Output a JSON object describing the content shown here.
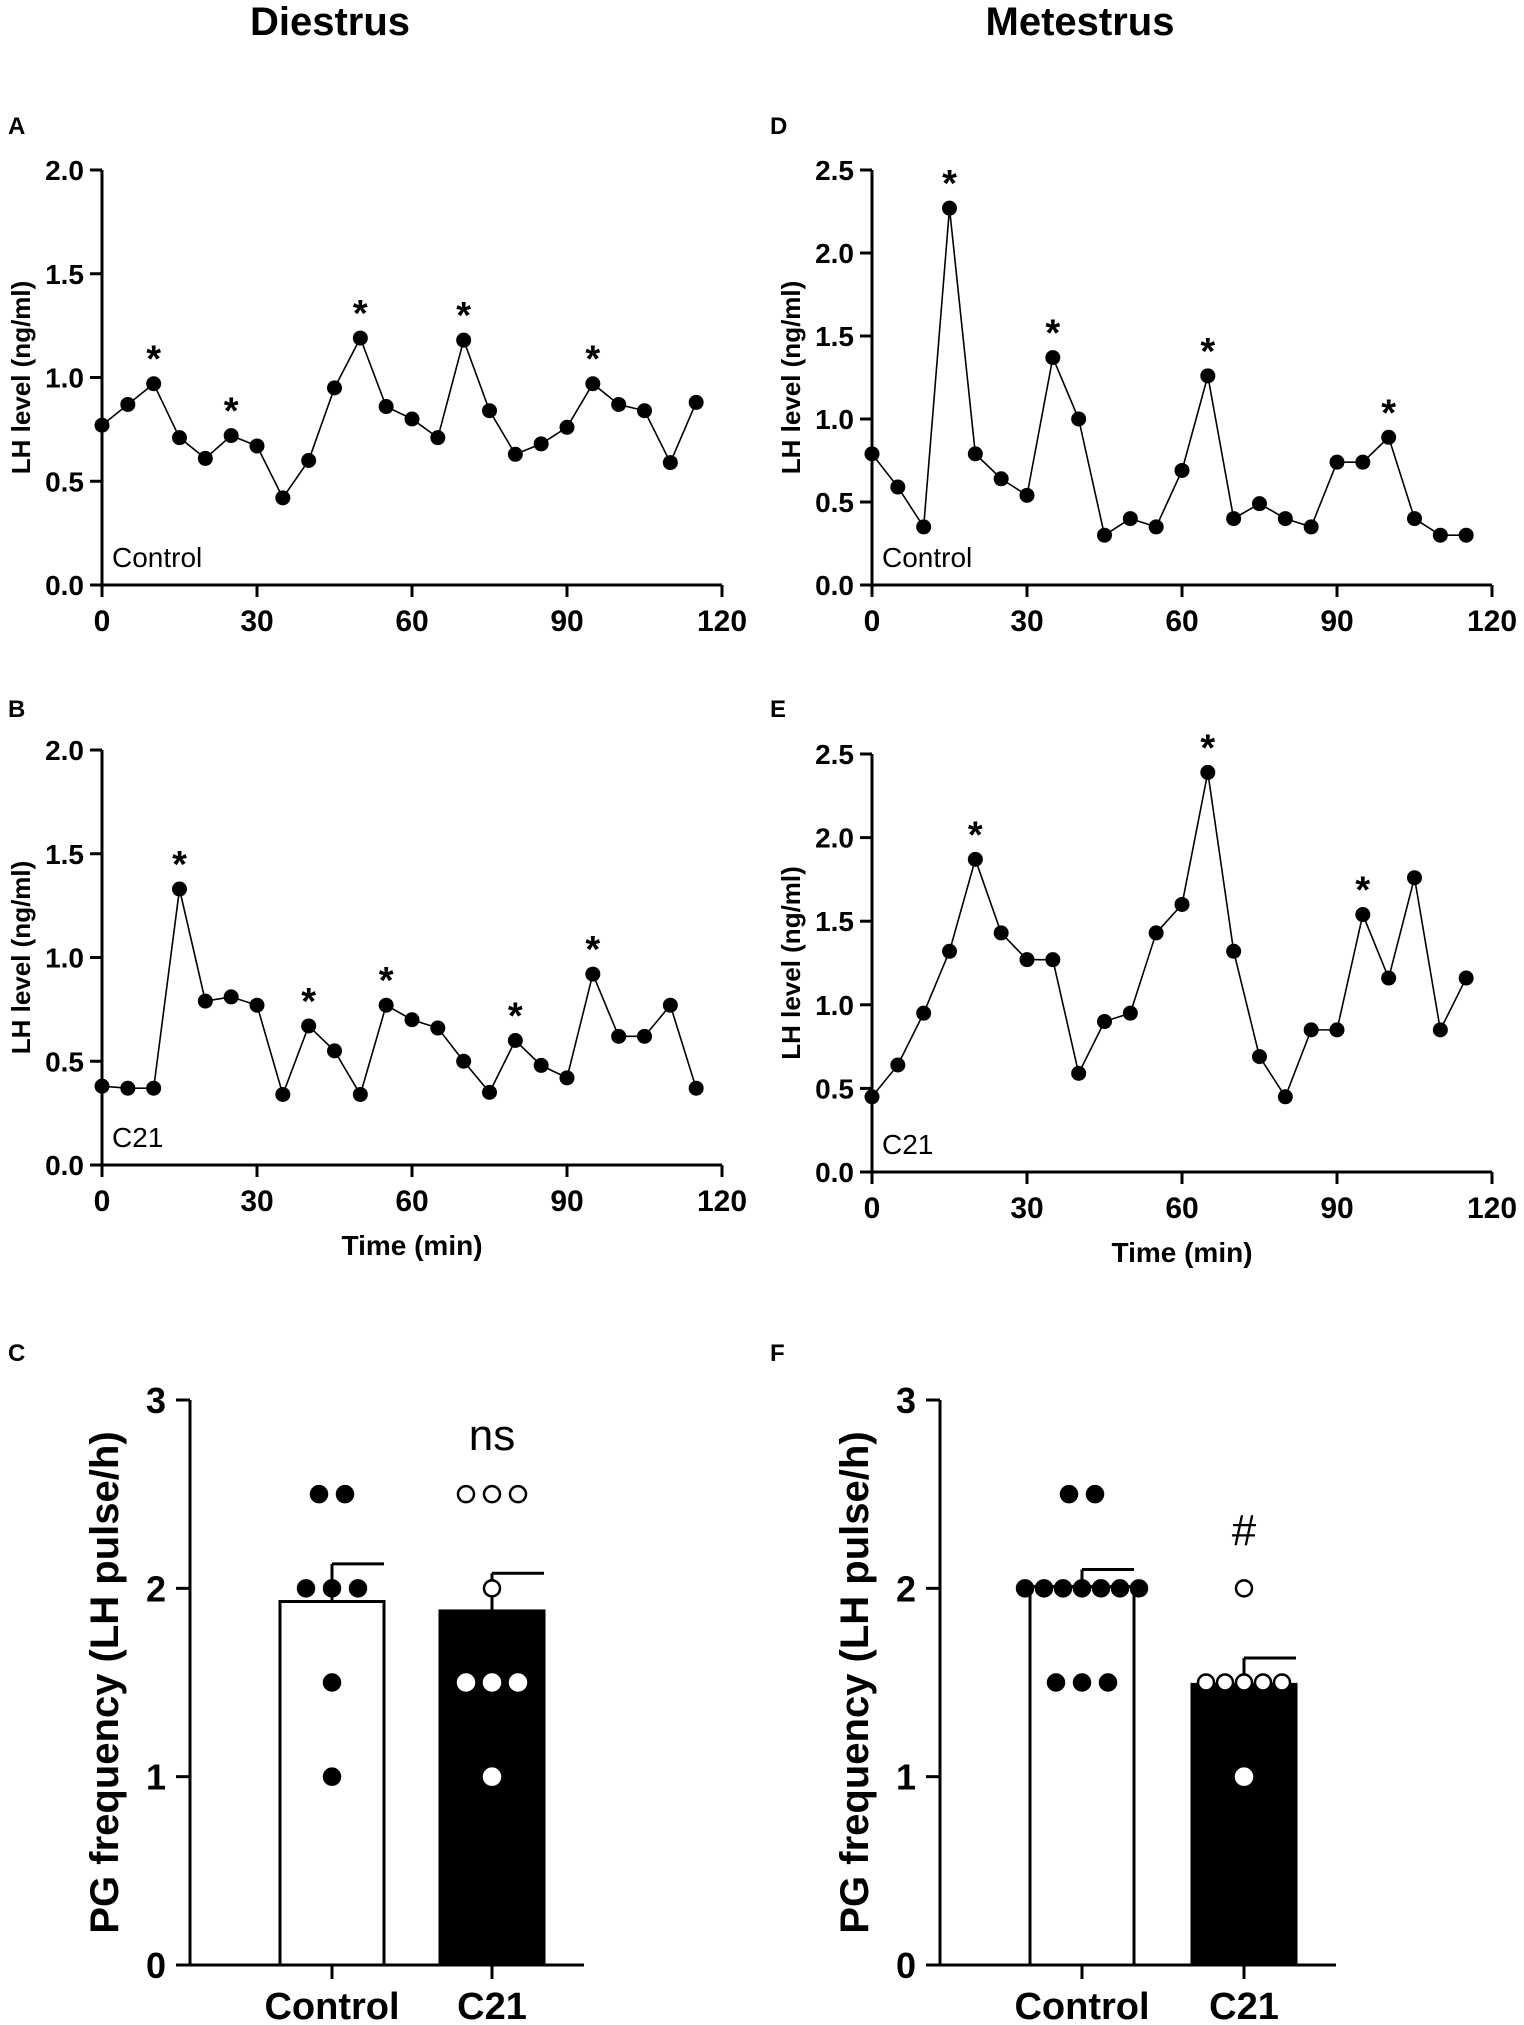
{
  "column_titles": {
    "left": "Diestrus",
    "right": "Metestrus"
  },
  "panel_letters": {
    "A": "A",
    "B": "B",
    "C": "C",
    "D": "D",
    "E": "E",
    "F": "F"
  },
  "chart_data": [
    {
      "id": "A",
      "type": "line",
      "group_label": "Control",
      "xlabel": "",
      "ylabel": "LH level (ng/ml)",
      "xlim": [
        0,
        120
      ],
      "ylim": [
        0,
        2.0
      ],
      "xticks": [
        0,
        30,
        60,
        90,
        120
      ],
      "xtick_labels": [
        "0",
        "30",
        "60",
        "90",
        "120"
      ],
      "yticks": [
        0,
        0.5,
        1.0,
        1.5,
        2.0
      ],
      "ytick_labels": [
        "0.0",
        "0.5",
        "1.0",
        "1.5",
        "2.0"
      ],
      "x": [
        0,
        5,
        10,
        15,
        20,
        25,
        30,
        35,
        40,
        45,
        50,
        55,
        60,
        65,
        70,
        75,
        80,
        85,
        90,
        95,
        100,
        105,
        110,
        115
      ],
      "y": [
        0.77,
        0.87,
        0.97,
        0.71,
        0.61,
        0.72,
        0.67,
        0.42,
        0.6,
        0.95,
        1.19,
        0.86,
        0.8,
        0.71,
        1.18,
        0.84,
        0.63,
        0.68,
        0.76,
        0.97,
        0.87,
        0.84,
        0.59,
        0.88
      ],
      "peaks": [
        10,
        25,
        50,
        70,
        95
      ],
      "peak_marker": "*"
    },
    {
      "id": "B",
      "type": "line",
      "group_label": "C21",
      "xlabel": "Time (min)",
      "ylabel": "LH level (ng/ml)",
      "xlim": [
        0,
        120
      ],
      "ylim": [
        0,
        2.0
      ],
      "xticks": [
        0,
        30,
        60,
        90,
        120
      ],
      "xtick_labels": [
        "0",
        "30",
        "60",
        "90",
        "120"
      ],
      "yticks": [
        0,
        0.5,
        1.0,
        1.5,
        2.0
      ],
      "ytick_labels": [
        "0.0",
        "0.5",
        "1.0",
        "1.5",
        "2.0"
      ],
      "x": [
        0,
        5,
        10,
        15,
        20,
        25,
        30,
        35,
        40,
        45,
        50,
        55,
        60,
        65,
        70,
        75,
        80,
        85,
        90,
        95,
        100,
        105,
        110,
        115
      ],
      "y": [
        0.38,
        0.37,
        0.37,
        1.33,
        0.79,
        0.81,
        0.77,
        0.34,
        0.67,
        0.55,
        0.34,
        0.77,
        0.7,
        0.66,
        0.5,
        0.35,
        0.6,
        0.48,
        0.42,
        0.92,
        0.62,
        0.62,
        0.77,
        0.37
      ],
      "peaks": [
        15,
        40,
        55,
        80,
        95
      ],
      "peak_marker": "*"
    },
    {
      "id": "D",
      "type": "line",
      "group_label": "Control",
      "xlabel": "",
      "ylabel": "LH level (ng/ml)",
      "xlim": [
        0,
        120
      ],
      "ylim": [
        0,
        2.5
      ],
      "xticks": [
        0,
        30,
        60,
        90,
        120
      ],
      "xtick_labels": [
        "0",
        "30",
        "60",
        "90",
        "120"
      ],
      "yticks": [
        0,
        0.5,
        1.0,
        1.5,
        2.0,
        2.5
      ],
      "ytick_labels": [
        "0.0",
        "0.5",
        "1.0",
        "1.5",
        "2.0",
        "2.5"
      ],
      "x": [
        0,
        5,
        10,
        15,
        20,
        25,
        30,
        35,
        40,
        45,
        50,
        55,
        60,
        65,
        70,
        75,
        80,
        85,
        90,
        95,
        100,
        105,
        110,
        115
      ],
      "y": [
        0.79,
        0.59,
        0.35,
        2.27,
        0.79,
        0.64,
        0.54,
        1.37,
        1.0,
        0.3,
        0.4,
        0.35,
        0.69,
        1.26,
        0.4,
        0.49,
        0.4,
        0.35,
        0.74,
        0.74,
        0.89,
        0.4,
        0.3,
        0.3
      ],
      "peaks": [
        15,
        35,
        65,
        100
      ],
      "peak_marker": "*"
    },
    {
      "id": "E",
      "type": "line",
      "group_label": "C21",
      "xlabel": "Time (min)",
      "ylabel": "LH level (ng/ml)",
      "xlim": [
        0,
        120
      ],
      "ylim": [
        0,
        2.5
      ],
      "xticks": [
        0,
        30,
        60,
        90,
        120
      ],
      "xtick_labels": [
        "0",
        "30",
        "60",
        "90",
        "120"
      ],
      "yticks": [
        0,
        0.5,
        1.0,
        1.5,
        2.0,
        2.5
      ],
      "ytick_labels": [
        "0.0",
        "0.5",
        "1.0",
        "1.5",
        "2.0",
        "2.5"
      ],
      "x": [
        0,
        5,
        10,
        15,
        20,
        25,
        30,
        35,
        40,
        45,
        50,
        55,
        60,
        65,
        70,
        75,
        80,
        85,
        90,
        95,
        100,
        105,
        110,
        115
      ],
      "y": [
        0.45,
        0.64,
        0.95,
        1.32,
        1.87,
        1.43,
        1.27,
        1.27,
        0.59,
        0.9,
        0.95,
        1.43,
        1.6,
        2.39,
        1.32,
        0.69,
        0.45,
        0.85,
        0.85,
        1.54,
        1.16,
        1.76,
        0.85,
        1.16
      ],
      "peaks": [
        20,
        65,
        95
      ],
      "peak_marker": "*"
    },
    {
      "id": "C",
      "type": "bar",
      "ylabel": "PG frequency (LH pulse/h)",
      "ylim": [
        0,
        3
      ],
      "yticks": [
        0,
        1,
        2,
        3
      ],
      "ytick_labels": [
        "0",
        "1",
        "2",
        "3"
      ],
      "categories": [
        "Control",
        "C21"
      ],
      "means": [
        1.93,
        1.88
      ],
      "sem": [
        0.2,
        0.2
      ],
      "individual_points": [
        [
          2.5,
          2.5,
          2.0,
          2.0,
          2.0,
          1.5,
          1.0
        ],
        [
          2.5,
          2.5,
          2.5,
          2.0,
          1.5,
          1.5,
          1.5,
          1.0
        ]
      ],
      "annotation": "ns"
    },
    {
      "id": "F",
      "type": "bar",
      "ylabel": "PG frequency (LH pulse/h)",
      "ylim": [
        0,
        3
      ],
      "yticks": [
        0,
        1,
        2,
        3
      ],
      "ytick_labels": [
        "0",
        "1",
        "2",
        "3"
      ],
      "categories": [
        "Control",
        "C21"
      ],
      "means": [
        2.01,
        1.49
      ],
      "sem": [
        0.09,
        0.14
      ],
      "individual_points": [
        [
          2.5,
          2.5,
          2.0,
          2.0,
          2.0,
          2.0,
          2.0,
          2.0,
          2.0,
          1.5,
          1.5,
          1.5
        ],
        [
          2.0,
          1.5,
          1.5,
          1.5,
          1.5,
          1.5,
          1.0
        ]
      ],
      "annotation": "#"
    }
  ]
}
